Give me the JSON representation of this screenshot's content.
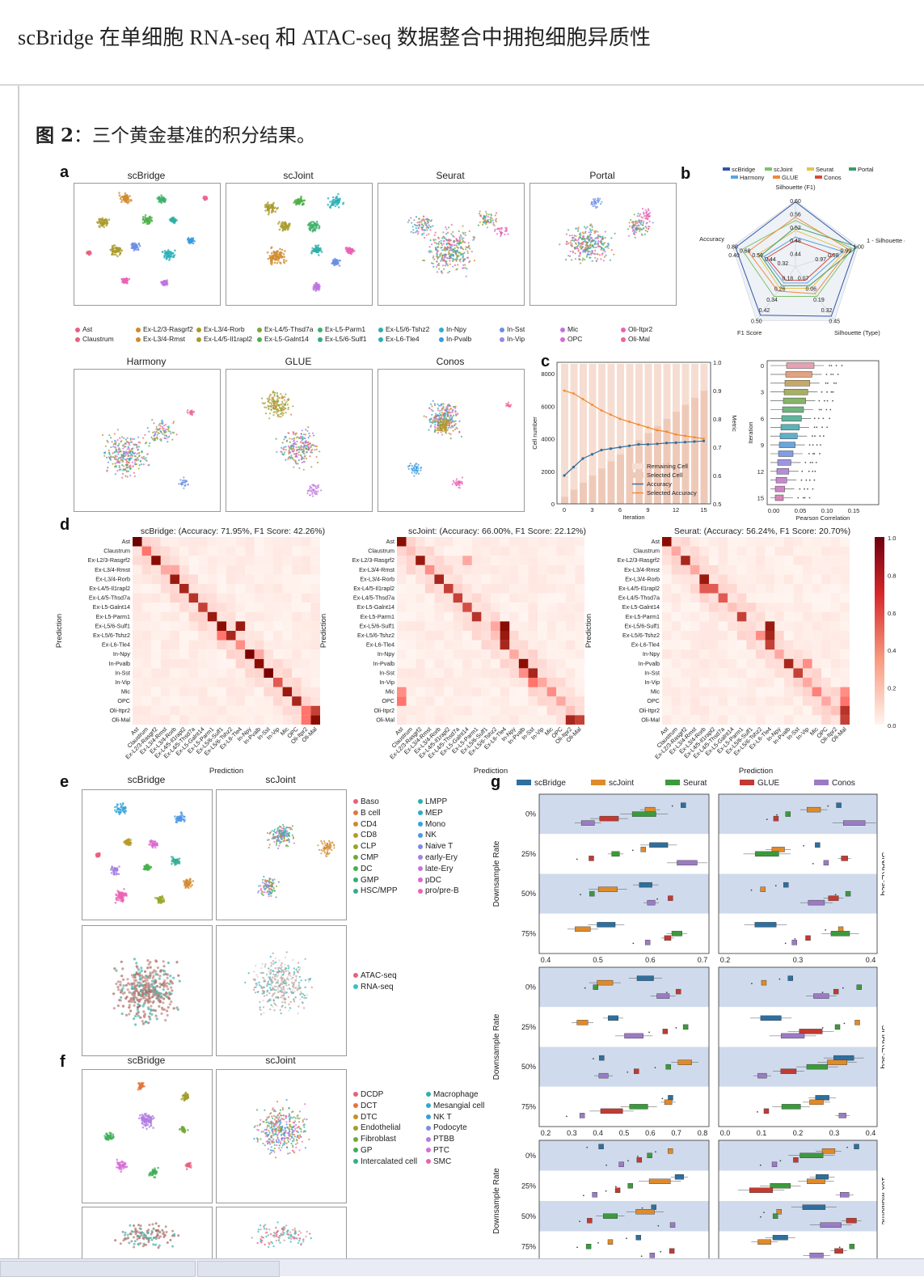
{
  "header": {
    "title": "scBridge 在单细胞 RNA-seq 和 ATAC-seq 数据整合中拥抱细胞异质性"
  },
  "figure": {
    "caption_prefix": "图 2",
    "caption_text": "：三个黄金基准的积分结果。",
    "panel_labels": {
      "a": "a",
      "b": "b",
      "c": "c",
      "d": "d",
      "e": "e",
      "f": "f",
      "g": "g"
    }
  },
  "panel_a": {
    "methods_row1": [
      "scBridge",
      "scJoint",
      "Seurat",
      "Portal"
    ],
    "methods_row2": [
      "Harmony",
      "GLUE",
      "Conos"
    ],
    "legend": [
      {
        "label": "Ast",
        "color": "#e8607d"
      },
      {
        "label": "Claustrum",
        "color": "#e8607d"
      },
      {
        "label": "Ex-L2/3-Rasgrf2",
        "color": "#d08a2c"
      },
      {
        "label": "Ex-L3/4-Rmst",
        "color": "#d08a2c"
      },
      {
        "label": "Ex-L3/4-Rorb",
        "color": "#a89a2a"
      },
      {
        "label": "Ex-L4/5-Il1rapl2",
        "color": "#a89a2a"
      },
      {
        "label": "Ex-L4/5-Thsd7a",
        "color": "#79a83a"
      },
      {
        "label": "Ex-L5-Galnt14",
        "color": "#4fb04a"
      },
      {
        "label": "Ex-L5-Parm1",
        "color": "#3fb06a"
      },
      {
        "label": "Ex-L5/6-Sulf1",
        "color": "#33ab8a"
      },
      {
        "label": "Ex-L5/6-Tshz2",
        "color": "#2fb0a5"
      },
      {
        "label": "Ex-L6-Tle4",
        "color": "#2ab0b8"
      },
      {
        "label": "In-Npy",
        "color": "#33a9d1"
      },
      {
        "label": "In-Pvalb",
        "color": "#3a9be0"
      },
      {
        "label": "In-Sst",
        "color": "#6b8ee6"
      },
      {
        "label": "In-Vip",
        "color": "#9a86e6"
      },
      {
        "label": "Mic",
        "color": "#c074e0"
      },
      {
        "label": "OPC",
        "color": "#db6ad2"
      },
      {
        "label": "Oli-Itpr2",
        "color": "#ea62b5"
      },
      {
        "label": "Oli-Mal",
        "color": "#ee6497"
      }
    ]
  },
  "panel_b": {
    "legend": [
      "scBridge",
      "scJoint",
      "Seurat",
      "Portal",
      "Harmony",
      "GLUE",
      "Conos"
    ],
    "axes": [
      "Silhouette (F1)",
      "1 - Silhouette (Omic)",
      "Silhouette (Type)",
      "F1 Score",
      "Accuracy"
    ],
    "labels": [
      "0.60",
      "0.56",
      "0.52",
      "0.48",
      "0.44",
      "0.40",
      "1.00",
      "0.99",
      "0.98",
      "0.97",
      "0.45",
      "0.32",
      "0.19",
      "0.06",
      "0.07",
      "0.50",
      "0.42",
      "0.34",
      "0.26",
      "0.18",
      "0.80",
      "0.68",
      "0.56",
      "0.44",
      "0.32"
    ]
  },
  "panel_c": {
    "ylabel_left": "Cell number",
    "ylabel_right": "Metric",
    "xlabel": "Iteration",
    "left_ticks": [
      "0",
      "2000",
      "4000",
      "6000",
      "8000"
    ],
    "right_ticks": [
      "0.5",
      "0.6",
      "0.7",
      "0.8",
      "0.9",
      "1.0"
    ],
    "x_ticks": [
      "0",
      "3",
      "6",
      "9",
      "12",
      "15"
    ],
    "legend": [
      "Remaining Cell",
      "Selected Cell",
      "Accuracy",
      "Selected Accuracy"
    ],
    "box_ylabel": "Iteration",
    "box_xlabel": "Pearson Correlation",
    "box_y_ticks": [
      "0",
      "3",
      "6",
      "9",
      "12",
      "15"
    ],
    "box_x_ticks": [
      "0.00",
      "0.05",
      "0.10",
      "0.15"
    ]
  },
  "panel_d": {
    "titles": [
      "scBridge: (Accuracy: 71.95%, F1 Score: 42.26%)",
      "scJoint: (Accuracy: 66.00%, F1 Score: 22.12%)",
      "Seurat: (Accuracy: 56.24%, F1 Score: 20.70%)"
    ],
    "ylabel": "Prediction",
    "xlabel": "Prediction",
    "cell_types": [
      "Ast",
      "Claustrum",
      "Ex-L2/3-Rasgrf2",
      "Ex-L3/4-Rmst",
      "Ex-L3/4-Rorb",
      "Ex-L4/5-Il1rapl2",
      "Ex-L4/5-Thsd7a",
      "Ex-L5-Galnt14",
      "Ex-L5-Parm1",
      "Ex-L5/6-Sulf1",
      "Ex-L5/6-Tshz2",
      "Ex-L6-Tle4",
      "In-Npy",
      "In-Pvalb",
      "In-Sst",
      "In-Vip",
      "Mic",
      "OPC",
      "Oli-Itpr2",
      "Oli-Mal"
    ],
    "colorbar_ticks": [
      "1.0",
      "0.8",
      "0.6",
      "0.4",
      "0.2",
      "0.0"
    ]
  },
  "panel_e": {
    "methods": [
      "scBridge",
      "scJoint"
    ],
    "legend_left": [
      {
        "label": "Baso",
        "color": "#e8607d"
      },
      {
        "label": "B cell",
        "color": "#e3763c"
      },
      {
        "label": "CD4",
        "color": "#d08a2c"
      },
      {
        "label": "CD8",
        "color": "#b89a28"
      },
      {
        "label": "CLP",
        "color": "#98a52a"
      },
      {
        "label": "CMP",
        "color": "#6faa35"
      },
      {
        "label": "DC",
        "color": "#45b04c"
      },
      {
        "label": "GMP",
        "color": "#38ad72"
      },
      {
        "label": "HSC/MPP",
        "color": "#31ad93"
      }
    ],
    "legend_right": [
      {
        "label": "LMPP",
        "color": "#2db0ac"
      },
      {
        "label": "MEP",
        "color": "#2cadc5"
      },
      {
        "label": "Mono",
        "color": "#35a4da"
      },
      {
        "label": "NK",
        "color": "#4c97e6"
      },
      {
        "label": "Naive T",
        "color": "#7b8be8"
      },
      {
        "label": "early-Ery",
        "color": "#a47fe4"
      },
      {
        "label": "late-Ery",
        "color": "#c374dd"
      },
      {
        "label": "pDC",
        "color": "#da6ad1"
      },
      {
        "label": "pro/pre-B",
        "color": "#e964b3"
      }
    ],
    "legend_omic": [
      {
        "label": "ATAC-seq",
        "color": "#e8607d"
      },
      {
        "label": "RNA-seq",
        "color": "#37bfc6"
      }
    ]
  },
  "panel_f": {
    "methods": [
      "scBridge",
      "scJoint"
    ],
    "legend_left": [
      {
        "label": "DCDP",
        "color": "#e8607d"
      },
      {
        "label": "DCT",
        "color": "#e3763c"
      },
      {
        "label": "DTC",
        "color": "#c6901f"
      },
      {
        "label": "Endothelial",
        "color": "#a09e2a"
      },
      {
        "label": "Fibroblast",
        "color": "#6faa35"
      },
      {
        "label": "GP",
        "color": "#3fae55"
      },
      {
        "label": "Intercalated cell",
        "color": "#33ad85"
      }
    ],
    "legend_right": [
      {
        "label": "Macrophage",
        "color": "#2eb0ac"
      },
      {
        "label": "Mesangial cell",
        "color": "#2eabcc"
      },
      {
        "label": "NK T",
        "color": "#3a9be0"
      },
      {
        "label": "Podocyte",
        "color": "#7d8ce8"
      },
      {
        "label": "PTBB",
        "color": "#b27ce2"
      },
      {
        "label": "PTC",
        "color": "#d66ed5"
      },
      {
        "label": "SMC",
        "color": "#ea63ab"
      }
    ]
  },
  "panel_g": {
    "legend": [
      {
        "label": "scBridge",
        "color": "#2e6f9e"
      },
      {
        "label": "scJoint",
        "color": "#e08a2a"
      },
      {
        "label": "Seurat",
        "color": "#3c9a3c"
      },
      {
        "label": "GLUE",
        "color": "#c23a32"
      },
      {
        "label": "Conos",
        "color": "#9c7bc4"
      }
    ],
    "ylabel": "Downsample Rate",
    "rates": [
      "0%",
      "25%",
      "50%",
      "75%"
    ],
    "datasets": [
      "SNARE-seq",
      "SHARE-seq",
      "10x Multiome"
    ],
    "row1_left_ticks": [
      "0.4",
      "0.5",
      "0.6",
      "0.7"
    ],
    "row1_right_ticks": [
      "0.2",
      "0.3",
      "0.4"
    ],
    "row2_left_ticks": [
      "0.2",
      "0.3",
      "0.4",
      "0.5",
      "0.6",
      "0.7",
      "0.8"
    ],
    "row2_right_ticks": [
      "0.0",
      "0.1",
      "0.2",
      "0.3",
      "0.4"
    ]
  }
}
